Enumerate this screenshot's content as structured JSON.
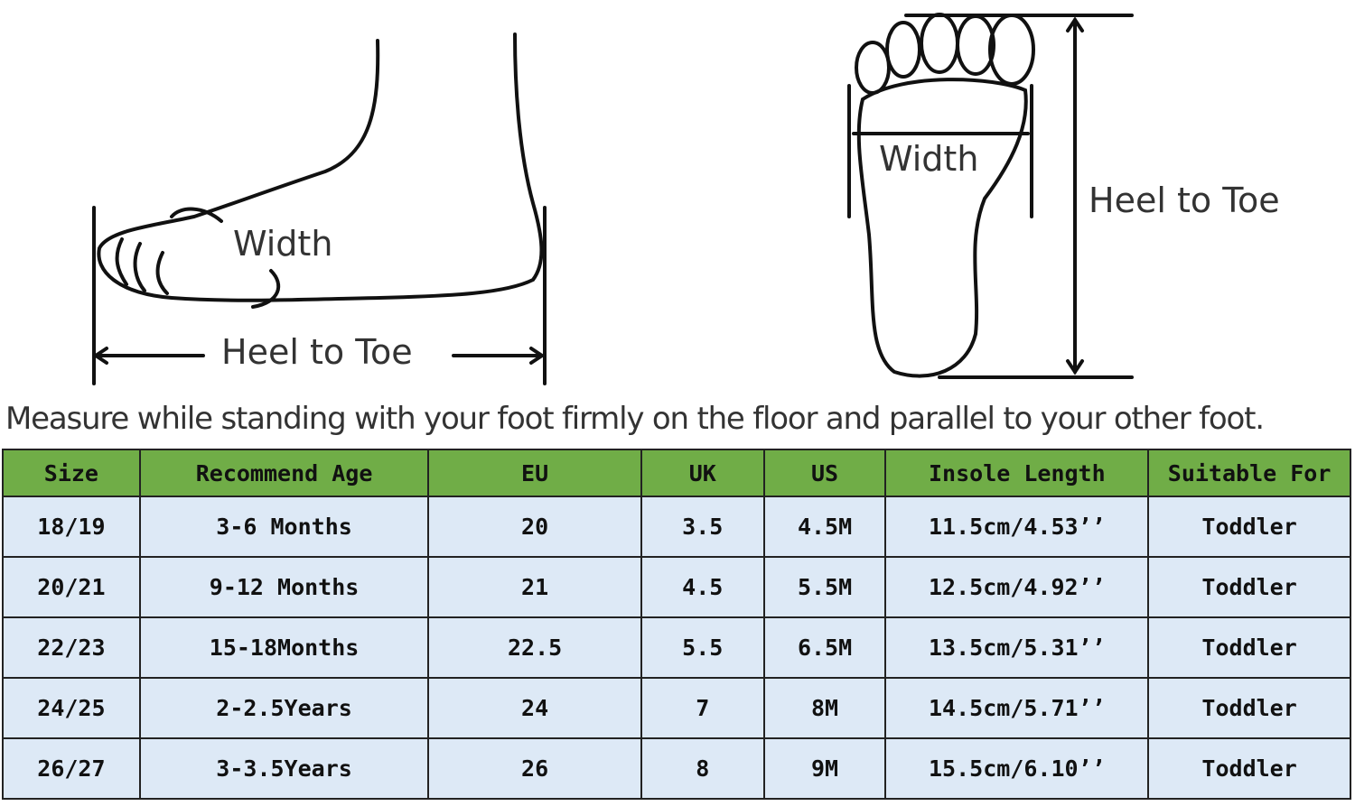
{
  "side_view": {
    "width_label": "Width",
    "length_label": "Heel to Toe"
  },
  "top_view": {
    "width_label": "Width",
    "length_label": "Heel to Toe"
  },
  "instruction": "Measure while standing with your foot firmly on the floor and parallel to your other foot.",
  "colors": {
    "header_bg": "#70ad47",
    "row_bg": "#dde9f6",
    "border": "#222222"
  },
  "table": {
    "headers": [
      "Size",
      "Recommend Age",
      "EU",
      "UK",
      "US",
      "Insole Length",
      "Suitable For"
    ],
    "rows": [
      [
        "18/19",
        "3-6 Months",
        "20",
        "3.5",
        "4.5M",
        "11.5cm/4.53’’",
        "Toddler"
      ],
      [
        "20/21",
        "9-12 Months",
        "21",
        "4.5",
        "5.5M",
        "12.5cm/4.92’’",
        "Toddler"
      ],
      [
        "22/23",
        "15-18Months",
        "22.5",
        "5.5",
        "6.5M",
        "13.5cm/5.31’’",
        "Toddler"
      ],
      [
        "24/25",
        "2-2.5Years",
        "24",
        "7",
        "8M",
        "14.5cm/5.71’’",
        "Toddler"
      ],
      [
        "26/27",
        "3-3.5Years",
        "26",
        "8",
        "9M",
        "15.5cm/6.10’’",
        "Toddler"
      ]
    ]
  }
}
